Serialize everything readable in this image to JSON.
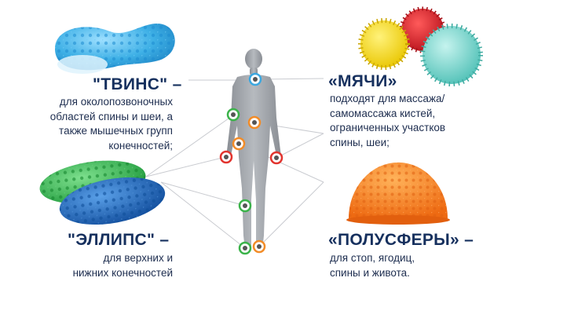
{
  "products": {
    "twins": {
      "title": "\"ТВИНС\"",
      "dash": " –",
      "lines": [
        "для околопозвоночных",
        "областей спины и шеи, а",
        "также мышечных групп",
        "конечностей;"
      ],
      "color": "#3eb0e6"
    },
    "balls": {
      "title": "«МЯЧИ»",
      "lines": [
        "подходят для массажа/",
        "самомассажа кистей,",
        "ограниченных участков",
        "спины, шеи;"
      ],
      "colors": [
        "#f2dc1c",
        "#d9202a",
        "#6fd2c9"
      ]
    },
    "ellipse": {
      "title": "\"ЭЛЛИПС\"",
      "dash": " –",
      "lines": [
        "для верхних и",
        "нижних конечностей"
      ],
      "colors": [
        "#28b24a",
        "#1f6fc0"
      ]
    },
    "hemispheres": {
      "title": "«ПОЛУСФЕРЫ»",
      "dash": " –",
      "lines": [
        "для стоп, ягодиц,",
        "спины и живота."
      ],
      "color": "#f5822a"
    }
  },
  "marker_colors": {
    "blue": "#3ba7e0",
    "green": "#3bb34a",
    "orange": "#f28c28",
    "red": "#e2342e"
  }
}
